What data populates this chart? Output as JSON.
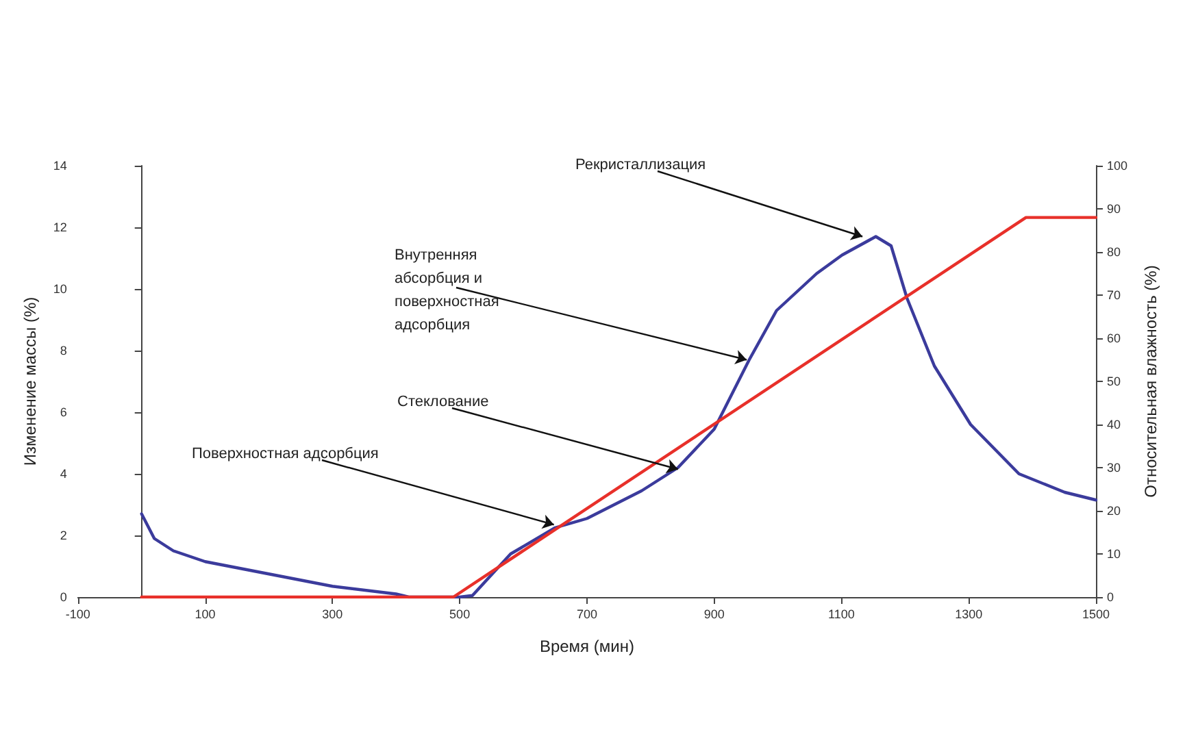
{
  "chart_data": {
    "type": "line",
    "xlabel": "Время (мин)",
    "ylabel": "Изменение массы (%)",
    "y2label": "Относительная влажность (%)",
    "xlim": [
      -100,
      1500
    ],
    "xticks": [
      -100,
      100,
      300,
      500,
      700,
      900,
      1100,
      1300,
      1500
    ],
    "ylim": [
      0,
      14
    ],
    "yticks": [
      0,
      2,
      4,
      6,
      8,
      10,
      12,
      14
    ],
    "y2lim": [
      0,
      100
    ],
    "y2ticks": [
      0,
      10,
      20,
      30,
      40,
      50,
      60,
      70,
      80,
      90,
      100
    ],
    "grid": false,
    "marker": "none",
    "line_style": "solid",
    "series": [
      {
        "color": "#3b3b9c",
        "x": [
          0,
          20,
          50,
          100,
          200,
          300,
          400,
          420,
          500,
          520,
          580,
          650,
          700,
          786,
          843,
          900,
          955,
          998,
          1061,
          1101,
          1154,
          1178,
          1203,
          1246,
          1303,
          1379,
          1451,
          1500
        ],
        "values": [
          2.7,
          1.9,
          1.5,
          1.15,
          0.75,
          0.35,
          0.1,
          0,
          0,
          0.05,
          1.4,
          2.25,
          2.55,
          3.45,
          4.2,
          5.45,
          7.7,
          9.3,
          10.5,
          11.1,
          11.7,
          11.4,
          9.7,
          7.5,
          5.6,
          4.0,
          3.4,
          3.15
        ]
      },
      {
        "color": "#e8302a",
        "axis": "y2",
        "x": [
          0,
          490,
          1390,
          1500
        ],
        "values": [
          0,
          0,
          88,
          88
        ]
      }
    ],
    "annotations": [
      {
        "text": "Поверхностная адсорбция",
        "x": 648,
        "y": 2.35
      },
      {
        "text": "Стеклование",
        "x": 843,
        "y": 4.15
      },
      {
        "text": "Внутренняя абсорбция и поверхностная адсорбция",
        "x": 951,
        "y": 7.7
      },
      {
        "text": "Рекристаллизация",
        "x": 1133,
        "y": 11.7
      }
    ]
  }
}
